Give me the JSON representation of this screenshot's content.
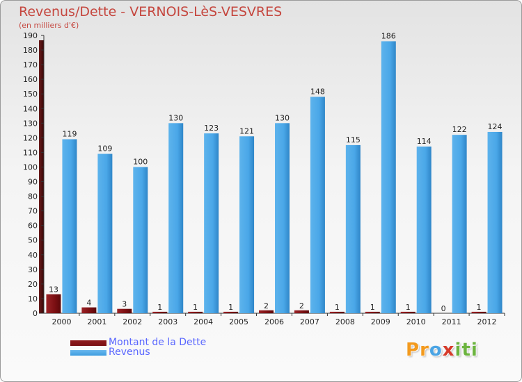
{
  "title": "Revenus/Dette - VERNOIS-LèS-VESVRES",
  "subtitle": "(en milliers d'€)",
  "logo": {
    "letters": [
      "P",
      "r",
      "o",
      "x",
      "i",
      "t",
      "i"
    ],
    "colors": [
      "#f39a1e",
      "#f39a1e",
      "#4aa4e4",
      "#d63a2a",
      "#6cb43f",
      "#6cb43f",
      "#6cb43f"
    ]
  },
  "colors": {
    "dette": "#7a0f12",
    "revenus": "#3d9de0",
    "title": "#c5473f",
    "legend_text": "#5a67ff"
  },
  "chart_data": {
    "type": "bar",
    "categories": [
      "2000",
      "2001",
      "2002",
      "2003",
      "2004",
      "2005",
      "2006",
      "2007",
      "2008",
      "2009",
      "2010",
      "2011",
      "2012"
    ],
    "series": [
      {
        "name": "Montant de la Dette",
        "values": [
          13,
          4,
          3,
          1,
          1,
          1,
          2,
          2,
          1,
          1,
          1,
          0,
          1
        ]
      },
      {
        "name": "Revenus",
        "values": [
          119,
          109,
          100,
          130,
          123,
          121,
          130,
          148,
          115,
          186,
          114,
          122,
          124
        ]
      }
    ],
    "ylim": [
      0,
      190
    ],
    "yticks": [
      0,
      10,
      20,
      30,
      40,
      50,
      60,
      70,
      80,
      90,
      100,
      110,
      120,
      130,
      140,
      150,
      160,
      170,
      180,
      190
    ],
    "grid": false,
    "legend_position": "bottom-left"
  }
}
